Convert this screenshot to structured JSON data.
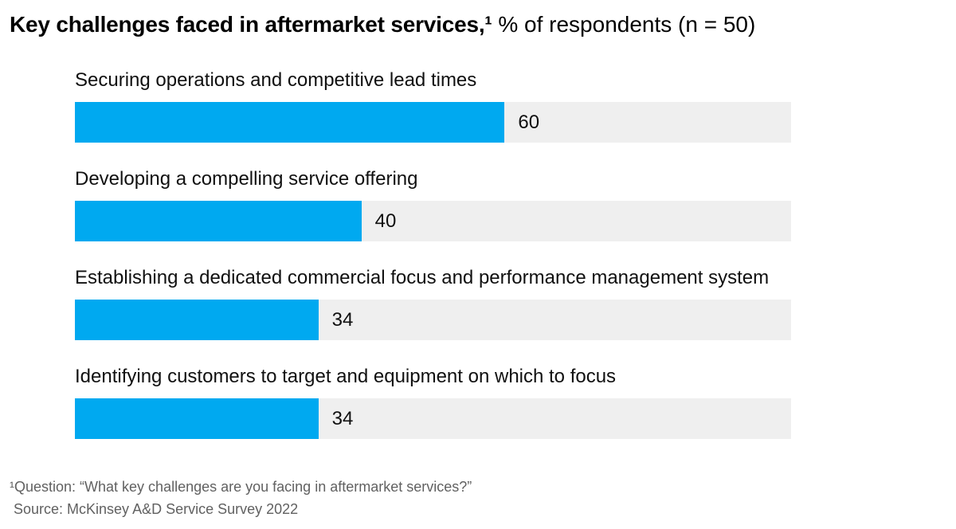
{
  "header": {
    "title_bold": "Key challenges faced in aftermarket services,¹",
    "title_regular": " % of respondents (n = 50)"
  },
  "chart": {
    "rows": [
      {
        "label": "Securing operations and competitive lead times",
        "value": 60
      },
      {
        "label": "Developing a compelling service offering",
        "value": 40
      },
      {
        "label": "Establishing a dedicated commercial focus and performance management system",
        "value": 34
      },
      {
        "label": "Identifying customers to target and equipment on which to focus",
        "value": 34
      }
    ]
  },
  "chart_data": {
    "type": "bar",
    "orientation": "horizontal",
    "title": "Key challenges faced in aftermarket services,¹ % of respondents (n = 50)",
    "categories": [
      "Securing operations and competitive lead times",
      "Developing a compelling service offering",
      "Establishing a dedicated commercial focus and performance management system",
      "Identifying customers to target and equipment on which to focus"
    ],
    "values": [
      60,
      40,
      34,
      34
    ],
    "unit": "% of respondents",
    "sample_size_note": "n = 50",
    "xlim": [
      0,
      100
    ],
    "grid": false,
    "legend": false,
    "data_labels": true,
    "bar_color": "#00a9f0",
    "track_color": "#efefef"
  },
  "footer": {
    "footnote": "¹Question: “What key challenges are you facing in aftermarket services?”",
    "source": "Source: McKinsey A&D Service Survey 2022"
  },
  "colors": {
    "bar": "#00a9f0",
    "track": "#efefef",
    "text": "#000000",
    "footnote_text": "#616161"
  }
}
